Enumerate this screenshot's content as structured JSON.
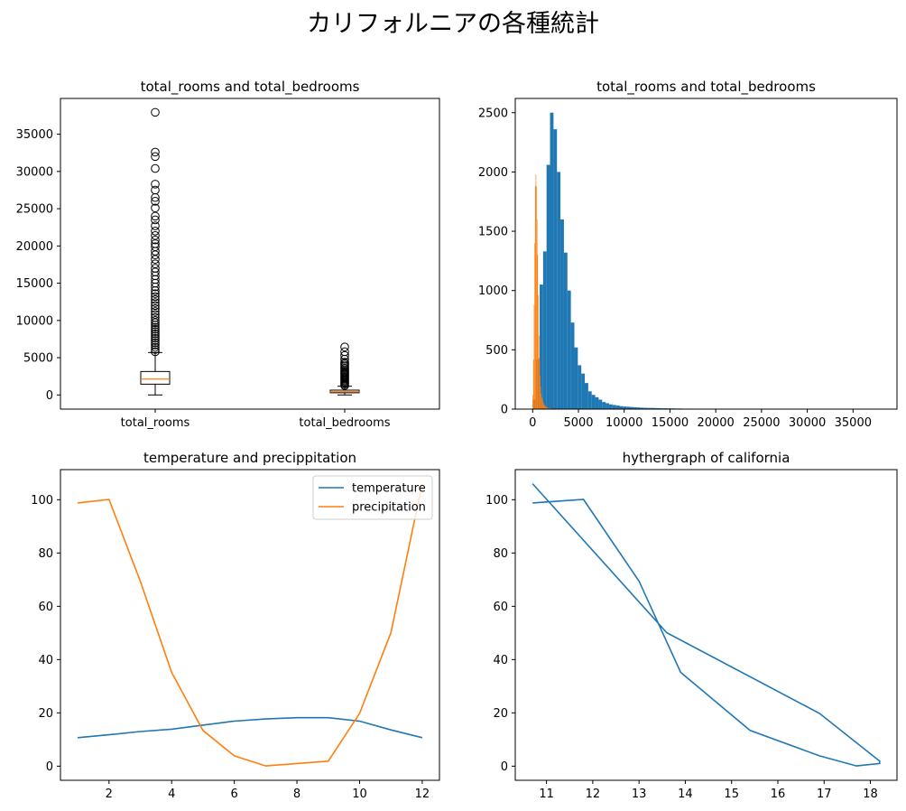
{
  "suptitle": "カリフォルニアの各種統計",
  "colors": {
    "blue": "#1f77b4",
    "orange": "#ff7f0e",
    "black": "#000000"
  },
  "chart_data": [
    {
      "type": "box",
      "title": "total_rooms and total_bedrooms",
      "categories": [
        "total_rooms",
        "total_bedrooms"
      ],
      "ylim": [
        -1900,
        39800
      ],
      "yticks": [
        0,
        5000,
        10000,
        15000,
        20000,
        25000,
        30000,
        35000
      ],
      "boxes": [
        {
          "name": "total_rooms",
          "whisker_low": 2,
          "q1": 1448,
          "median": 2127,
          "q3": 3148,
          "whisker_high": 5698,
          "fliers": [
            5800,
            6100,
            6400,
            6700,
            7000,
            7300,
            7600,
            7900,
            8200,
            8500,
            8800,
            9100,
            9400,
            9700,
            10000,
            10400,
            10800,
            11200,
            11600,
            12000,
            12400,
            12800,
            13200,
            13600,
            14000,
            14500,
            15000,
            15500,
            16000,
            16500,
            17000,
            17600,
            18200,
            18800,
            19300,
            19900,
            20300,
            20800,
            21400,
            22000,
            22700,
            23500,
            24000,
            25100,
            26000,
            26500,
            27500,
            28300,
            30400,
            32000,
            32600,
            37937
          ]
        },
        {
          "name": "total_bedrooms",
          "whisker_low": 1,
          "q1": 296,
          "median": 435,
          "q3": 647,
          "whisker_high": 1173,
          "fliers": [
            1250,
            1400,
            1550,
            1700,
            1850,
            2000,
            2150,
            2300,
            2450,
            2600,
            2750,
            2900,
            3050,
            3200,
            3400,
            3600,
            3800,
            4000,
            4200,
            4400,
            4800,
            5300,
            5800,
            6445
          ]
        }
      ]
    },
    {
      "type": "histogram",
      "title": "total_rooms and total_bedrooms",
      "xticks": [
        0,
        5000,
        10000,
        15000,
        20000,
        25000,
        30000,
        35000
      ],
      "yticks": [
        0,
        500,
        1000,
        1500,
        2000,
        2500
      ],
      "xlim": [
        -1900,
        39800
      ],
      "ylim": [
        0,
        2620
      ],
      "series": [
        {
          "name": "total_rooms",
          "bin_start": 2,
          "bin_width": 379.35,
          "counts": [
            80,
            420,
            1050,
            1330,
            2060,
            2500,
            2360,
            2000,
            1600,
            1320,
            1000,
            730,
            520,
            370,
            300,
            220,
            150,
            120,
            100,
            80,
            60,
            50,
            40,
            35,
            30,
            25,
            22,
            20,
            18,
            16,
            14,
            12,
            11,
            10,
            10,
            9,
            8,
            7,
            7,
            6,
            6,
            5,
            5,
            4,
            4,
            3,
            3,
            3,
            3,
            2,
            2,
            2,
            2,
            2,
            2,
            2,
            1,
            1,
            1,
            1,
            1,
            1,
            1,
            1,
            1,
            1,
            1,
            1,
            1,
            1,
            1,
            1,
            1,
            1,
            1,
            1,
            1,
            1,
            1,
            1,
            1,
            1,
            1,
            1,
            1,
            1,
            1,
            1,
            1,
            1,
            1,
            1,
            1,
            1,
            1,
            1,
            1,
            1,
            1,
            1
          ]
        },
        {
          "name": "total_bedrooms",
          "bin_start": 1,
          "bin_width": 64.44,
          "counts": [
            120,
            420,
            880,
            1400,
            1880,
            1980,
            1880,
            1600,
            1300,
            960,
            620,
            430,
            280,
            190,
            130,
            100,
            80,
            60,
            50,
            40,
            30,
            25,
            20,
            16,
            13,
            11,
            10,
            9,
            8,
            7,
            6,
            5,
            5,
            4,
            4,
            3,
            3,
            3,
            2,
            2,
            2,
            2,
            2,
            2,
            1,
            1,
            1,
            1,
            1,
            1,
            1,
            1,
            1,
            1,
            1,
            1,
            1,
            1,
            1,
            1,
            1,
            1,
            1,
            1,
            1,
            1,
            1,
            1,
            1,
            1,
            1,
            1,
            1,
            1,
            1,
            1,
            1,
            1,
            1,
            1,
            1,
            1,
            1,
            1,
            1,
            1,
            1,
            1,
            1,
            1,
            1,
            1,
            1,
            1,
            1,
            1,
            1,
            1,
            1,
            1
          ]
        }
      ]
    },
    {
      "type": "line",
      "title": "temperature and precippitation",
      "x": [
        1,
        2,
        3,
        4,
        5,
        6,
        7,
        8,
        9,
        10,
        11,
        12
      ],
      "xticks": [
        2,
        4,
        6,
        8,
        10,
        12
      ],
      "yticks": [
        0,
        20,
        40,
        60,
        80,
        100
      ],
      "xlim": [
        0.45,
        12.55
      ],
      "ylim": [
        -5.3,
        111.3
      ],
      "legend": "top-right",
      "series": [
        {
          "name": "temperature",
          "values": [
            10.7,
            11.8,
            13.0,
            13.9,
            15.4,
            16.9,
            17.7,
            18.2,
            18.2,
            16.9,
            13.6,
            10.7
          ]
        },
        {
          "name": "precipitation",
          "values": [
            98.8,
            100.1,
            69.4,
            35.2,
            13.4,
            3.9,
            0.1,
            1.0,
            1.9,
            19.8,
            50.1,
            106.0
          ]
        }
      ]
    },
    {
      "type": "line",
      "title": "hythergraph of california",
      "x": [
        10.7,
        11.8,
        13.0,
        13.9,
        15.4,
        16.9,
        17.7,
        18.2,
        18.2,
        16.9,
        13.6,
        10.7
      ],
      "y": [
        98.8,
        100.1,
        69.4,
        35.2,
        13.4,
        3.9,
        0.1,
        1.0,
        1.9,
        19.8,
        50.1,
        106.0
      ],
      "xticks": [
        11,
        12,
        13,
        14,
        15,
        16,
        17,
        18
      ],
      "yticks": [
        0,
        20,
        40,
        60,
        80,
        100
      ],
      "xlim": [
        10.325,
        18.575
      ],
      "ylim": [
        -5.3,
        111.3
      ]
    }
  ]
}
